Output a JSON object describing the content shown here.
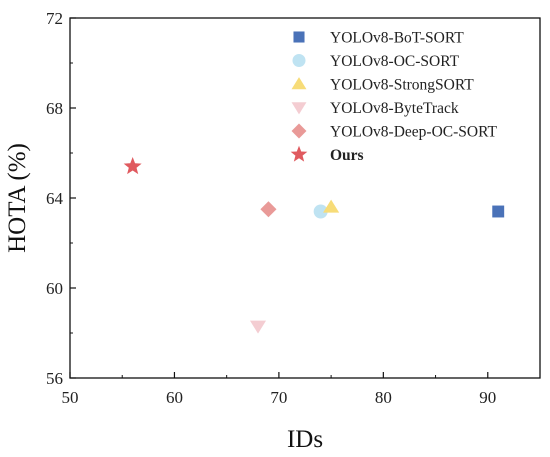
{
  "chart_data": {
    "type": "scatter",
    "xlabel": "IDs",
    "ylabel": "HOTA (%)",
    "xlim": [
      50,
      95
    ],
    "ylim": [
      56,
      72
    ],
    "xticks": [
      "50",
      "60",
      "70",
      "80",
      "90"
    ],
    "yticks": [
      "56",
      "60",
      "64",
      "68",
      "72"
    ],
    "legend_position": "top-right",
    "series": [
      {
        "name": "YOLOv8-BoT-SORT",
        "marker": "square",
        "color": "#4a72b8",
        "x": 91,
        "y": 63.4,
        "bold": false
      },
      {
        "name": "YOLOv8-OC-SORT",
        "marker": "circle",
        "color": "#bfe3f2",
        "x": 74,
        "y": 63.4,
        "bold": false
      },
      {
        "name": "YOLOv8-StrongSORT",
        "marker": "triangle-up",
        "color": "#f7dc78",
        "x": 75,
        "y": 63.6,
        "bold": false
      },
      {
        "name": "YOLOv8-ByteTrack",
        "marker": "triangle-down",
        "color": "#f4cdd2",
        "x": 68,
        "y": 58.3,
        "bold": false
      },
      {
        "name": "YOLOv8-Deep-OC-SORT",
        "marker": "diamond",
        "color": "#e99a98",
        "x": 69,
        "y": 63.5,
        "bold": false
      },
      {
        "name": "Ours",
        "marker": "star",
        "color": "#e05a5f",
        "x": 56,
        "y": 65.4,
        "bold": true
      }
    ]
  }
}
